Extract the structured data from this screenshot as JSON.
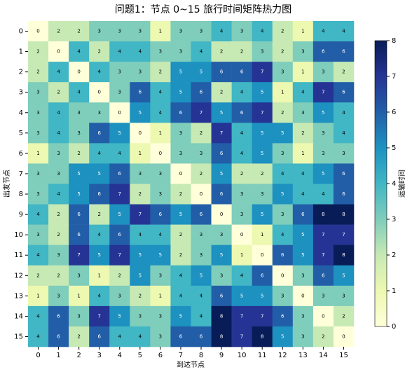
{
  "chart_data": {
    "type": "heatmap",
    "title": "问题1：节点 0~15 旅行时间矩阵热力图",
    "x_label": "到达节点",
    "y_label": "出发节点",
    "colorbar_label": "运输时间",
    "x": [
      0,
      1,
      2,
      3,
      4,
      5,
      6,
      7,
      8,
      9,
      10,
      11,
      12,
      13,
      14,
      15
    ],
    "y": [
      0,
      1,
      2,
      3,
      4,
      5,
      6,
      7,
      8,
      9,
      10,
      11,
      12,
      13,
      14,
      15
    ],
    "values": [
      [
        0,
        2,
        2,
        3,
        3,
        3,
        1,
        3,
        3,
        4,
        3,
        4,
        2,
        1,
        4,
        4
      ],
      [
        2,
        0,
        4,
        2,
        4,
        4,
        3,
        3,
        4,
        2,
        2,
        3,
        2,
        3,
        6,
        6
      ],
      [
        2,
        4,
        0,
        4,
        3,
        3,
        2,
        5,
        5,
        6,
        6,
        7,
        3,
        1,
        3,
        2
      ],
      [
        3,
        2,
        4,
        0,
        3,
        6,
        4,
        5,
        6,
        2,
        4,
        5,
        1,
        4,
        7,
        6
      ],
      [
        3,
        4,
        3,
        3,
        0,
        5,
        4,
        6,
        7,
        5,
        6,
        7,
        2,
        3,
        5,
        4
      ],
      [
        3,
        4,
        3,
        6,
        5,
        0,
        1,
        3,
        2,
        7,
        4,
        5,
        5,
        2,
        3,
        4
      ],
      [
        1,
        3,
        2,
        4,
        4,
        1,
        0,
        3,
        3,
        6,
        4,
        5,
        3,
        1,
        3,
        3
      ],
      [
        3,
        3,
        5,
        5,
        6,
        3,
        3,
        0,
        2,
        5,
        2,
        2,
        4,
        4,
        5,
        6
      ],
      [
        3,
        4,
        5,
        6,
        7,
        2,
        3,
        2,
        0,
        6,
        3,
        3,
        5,
        4,
        4,
        6
      ],
      [
        4,
        2,
        6,
        2,
        5,
        7,
        6,
        5,
        6,
        0,
        3,
        5,
        3,
        6,
        8,
        8
      ],
      [
        3,
        2,
        6,
        4,
        6,
        4,
        4,
        2,
        3,
        3,
        0,
        1,
        4,
        5,
        7,
        7
      ],
      [
        4,
        3,
        7,
        5,
        7,
        5,
        5,
        2,
        3,
        5,
        1,
        0,
        6,
        5,
        7,
        8
      ],
      [
        2,
        2,
        3,
        1,
        2,
        5,
        3,
        4,
        5,
        3,
        4,
        6,
        0,
        3,
        6,
        5
      ],
      [
        1,
        3,
        1,
        4,
        3,
        2,
        1,
        4,
        4,
        6,
        5,
        5,
        3,
        0,
        3,
        3
      ],
      [
        4,
        6,
        3,
        7,
        5,
        3,
        3,
        5,
        4,
        8,
        7,
        7,
        6,
        3,
        0,
        2
      ],
      [
        4,
        6,
        2,
        6,
        4,
        4,
        3,
        6,
        6,
        8,
        7,
        8,
        5,
        3,
        2,
        0
      ]
    ],
    "clim": [
      0,
      8
    ],
    "cticks": [
      0,
      1,
      2,
      3,
      4,
      5,
      6,
      7,
      8
    ],
    "colormap": [
      "#ffffd9",
      "#edf8b1",
      "#c7e9b4",
      "#7fcdbb",
      "#41b6c4",
      "#1d91c0",
      "#225ea8",
      "#253494",
      "#081d58"
    ]
  }
}
